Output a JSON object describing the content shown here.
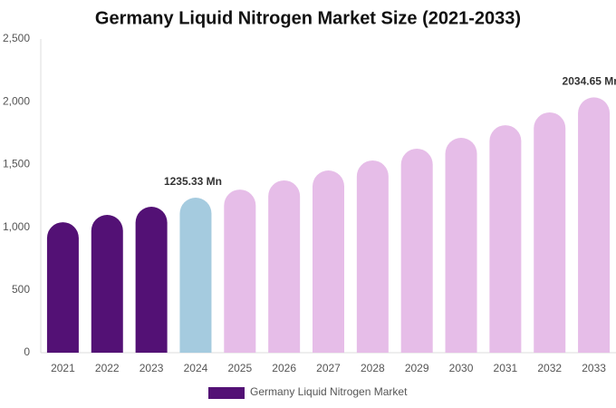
{
  "chart_data": {
    "type": "bar",
    "title": "Germany Liquid Nitrogen Market Size (2021-2033)",
    "categories": [
      "2021",
      "2022",
      "2023",
      "2024",
      "2025",
      "2026",
      "2027",
      "2028",
      "2029",
      "2030",
      "2031",
      "2032",
      "2033"
    ],
    "series": [
      {
        "name": "Germany Liquid Nitrogen Market",
        "color": "#531175",
        "values": [
          1040,
          1098,
          1163,
          1235.33,
          1300,
          1373,
          1452,
          1532,
          1626,
          1712,
          1813,
          1915,
          2034.65
        ],
        "value_labels": [
          null,
          null,
          null,
          "1235.33 Mn",
          null,
          null,
          null,
          null,
          null,
          null,
          null,
          null,
          "2034.65 Mn"
        ],
        "colors": [
          "#531175",
          "#531175",
          "#531175",
          "#a5cbdf",
          "#e6bde8",
          "#e6bde8",
          "#e6bde8",
          "#e6bde8",
          "#e6bde8",
          "#e6bde8",
          "#e6bde8",
          "#e6bde8",
          "#e6bde8"
        ]
      }
    ],
    "ylim": [
      0,
      2500
    ],
    "yticks": [
      0,
      500,
      {
        "value": 1000,
        "label": "1,000"
      },
      {
        "value": 1500,
        "label": "1,500"
      },
      {
        "value": 2000,
        "label": "2,000"
      },
      {
        "value": 2500,
        "label": "2,500"
      }
    ],
    "grid": false
  }
}
